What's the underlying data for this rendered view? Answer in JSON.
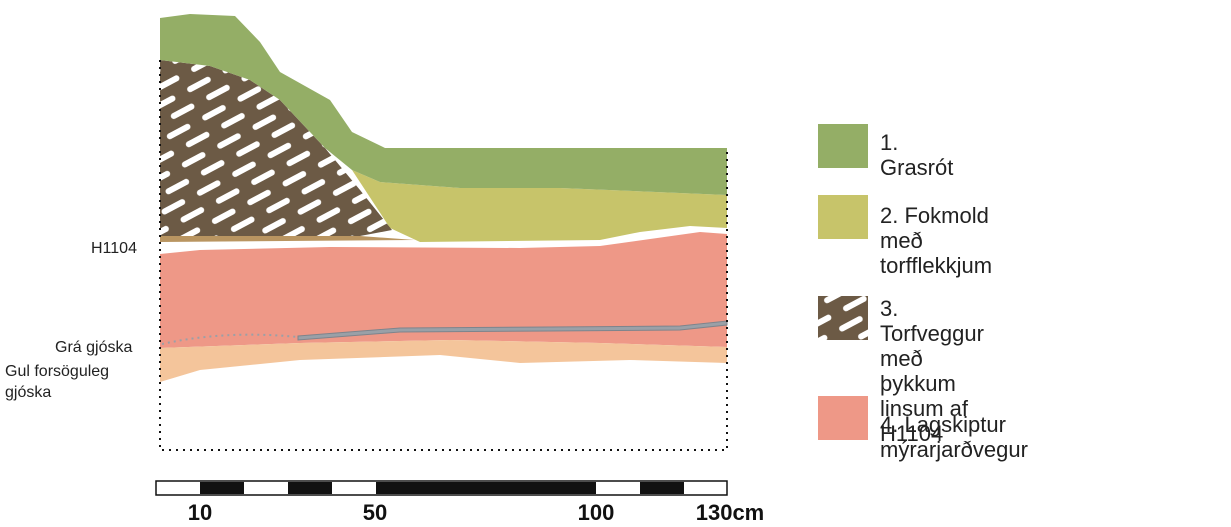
{
  "profile": {
    "labels": {
      "h1104": "H1104",
      "gra_gjoska": "Grá gjóska",
      "gul_line1": "Gul forsöguleg",
      "gul_line2": "gjóska"
    },
    "colors": {
      "grasrot": "#94ae66",
      "fokmold": "#c7c46a",
      "torfveggur": "#6c5a45",
      "myrarjardvegur": "#ee9887",
      "gul_gjoska": "#f4c59b",
      "tephra_band": "#b99561",
      "gray_tephra": "#9aa0a7"
    }
  },
  "legend": [
    {
      "text": "1. Grasrót",
      "color": "#94ae66",
      "pattern": false
    },
    {
      "text": "2. Fokmold með torfflekkjum",
      "color": "#c7c46a",
      "pattern": false
    },
    {
      "text": "3. Torfveggur með þykkum\nlinsum af H1104",
      "color": "#6c5a45",
      "pattern": true
    },
    {
      "text": "4. Lagskiptur mýrarjarðvegur",
      "color": "#ee9887",
      "pattern": false
    }
  ],
  "scale": {
    "ticks": [
      "10",
      "50",
      "100",
      "130cm"
    ]
  }
}
